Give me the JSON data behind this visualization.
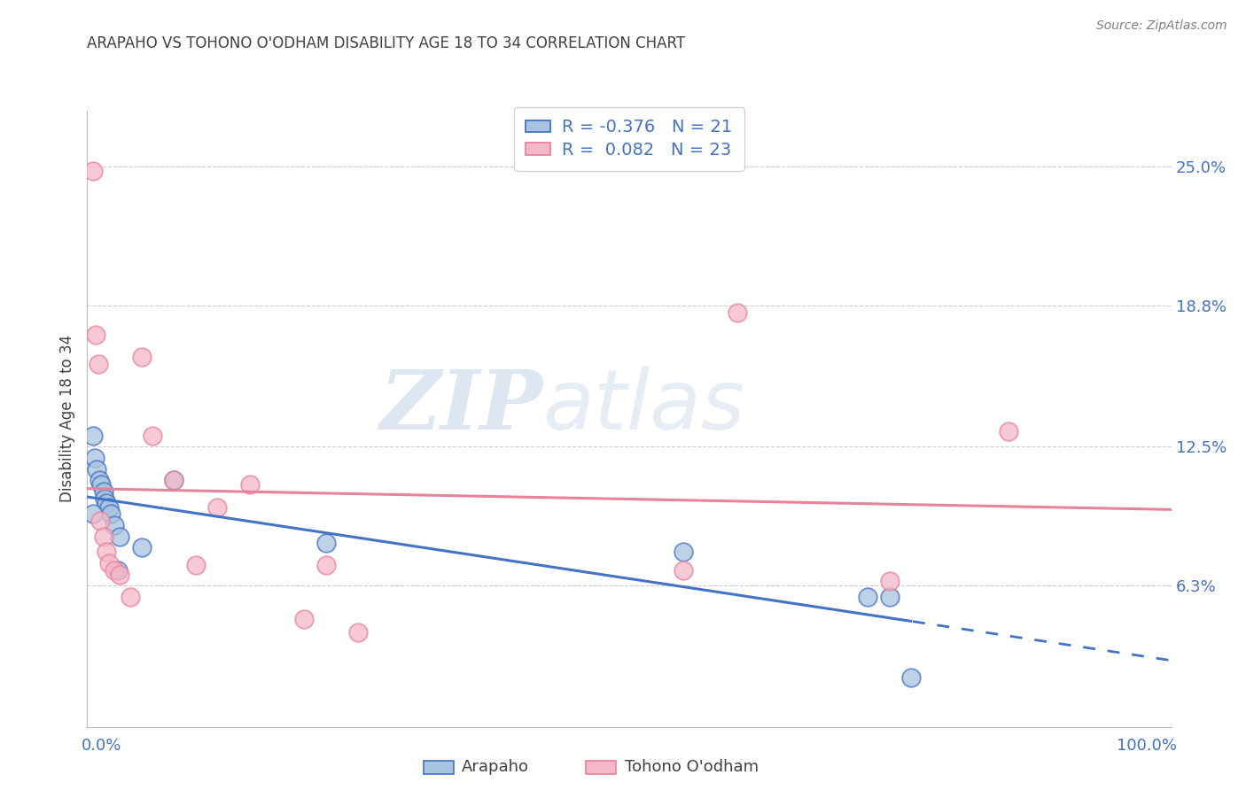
{
  "title": "ARAPAHO VS TOHONO O'ODHAM DISABILITY AGE 18 TO 34 CORRELATION CHART",
  "source": "Source: ZipAtlas.com",
  "ylabel": "Disability Age 18 to 34",
  "ytick_labels": [
    "6.3%",
    "12.5%",
    "18.8%",
    "25.0%"
  ],
  "ytick_values": [
    0.063,
    0.125,
    0.188,
    0.25
  ],
  "xlim": [
    0.0,
    1.0
  ],
  "ylim": [
    0.0,
    0.275
  ],
  "arapaho_color": "#a8c4e0",
  "tohono_color": "#f4b8c8",
  "arapaho_line_color": "#4472c4",
  "tohono_line_color": "#e8829a",
  "legend_r_arapaho": "-0.376",
  "legend_n_arapaho": "21",
  "legend_r_tohono": "0.082",
  "legend_n_tohono": "23",
  "arapaho_x": [
    0.005,
    0.007,
    0.009,
    0.011,
    0.013,
    0.015,
    0.016,
    0.018,
    0.02,
    0.022,
    0.025,
    0.03,
    0.05,
    0.08,
    0.22,
    0.55,
    0.72,
    0.74,
    0.76,
    0.005,
    0.028
  ],
  "arapaho_y": [
    0.13,
    0.12,
    0.115,
    0.11,
    0.108,
    0.105,
    0.102,
    0.1,
    0.098,
    0.095,
    0.09,
    0.085,
    0.08,
    0.11,
    0.082,
    0.078,
    0.058,
    0.058,
    0.022,
    0.095,
    0.07
  ],
  "tohono_x": [
    0.005,
    0.008,
    0.01,
    0.012,
    0.015,
    0.018,
    0.02,
    0.025,
    0.03,
    0.04,
    0.05,
    0.06,
    0.08,
    0.1,
    0.12,
    0.15,
    0.2,
    0.22,
    0.25,
    0.55,
    0.6,
    0.74,
    0.85
  ],
  "tohono_y": [
    0.248,
    0.175,
    0.162,
    0.092,
    0.085,
    0.078,
    0.073,
    0.07,
    0.068,
    0.058,
    0.165,
    0.13,
    0.11,
    0.072,
    0.098,
    0.108,
    0.048,
    0.072,
    0.042,
    0.07,
    0.185,
    0.065,
    0.132
  ],
  "watermark_zip": "ZIP",
  "watermark_atlas": "atlas",
  "background_color": "#ffffff",
  "grid_color": "#cccccc",
  "title_color": "#404040",
  "tick_color": "#4472c4",
  "source_color": "#808080"
}
